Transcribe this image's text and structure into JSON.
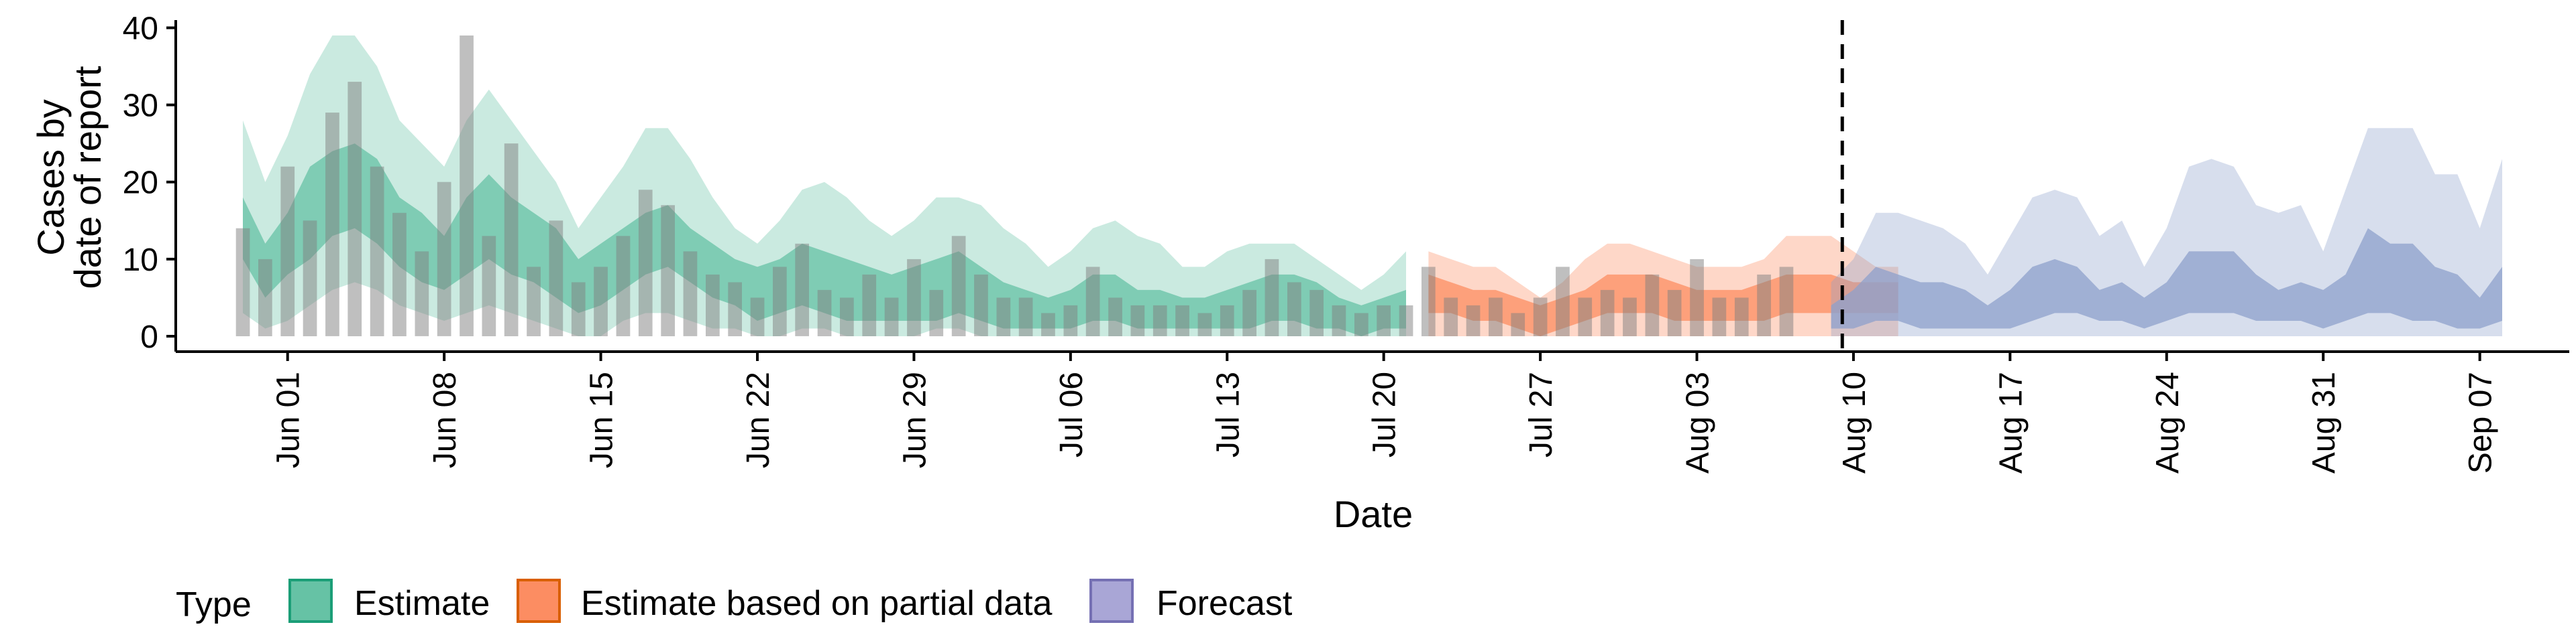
{
  "chart_data": {
    "type": "area",
    "xlabel": "Date",
    "ylabel_lines": [
      "Cases by",
      "date of report"
    ],
    "x_start": "2020-05-30",
    "ylim": [
      -2,
      41
    ],
    "xlim": [
      "2020-05-27",
      "2020-09-11"
    ],
    "y_ticks": [
      0,
      10,
      20,
      30,
      40
    ],
    "x_ticks": [
      {
        "date": "2020-06-01",
        "label": "Jun 01"
      },
      {
        "date": "2020-06-08",
        "label": "Jun 08"
      },
      {
        "date": "2020-06-15",
        "label": "Jun 15"
      },
      {
        "date": "2020-06-22",
        "label": "Jun 22"
      },
      {
        "date": "2020-06-29",
        "label": "Jun 29"
      },
      {
        "date": "2020-07-06",
        "label": "Jul 06"
      },
      {
        "date": "2020-07-13",
        "label": "Jul 13"
      },
      {
        "date": "2020-07-20",
        "label": "Jul 20"
      },
      {
        "date": "2020-07-27",
        "label": "Jul 27"
      },
      {
        "date": "2020-08-03",
        "label": "Aug 03"
      },
      {
        "date": "2020-08-10",
        "label": "Aug 10"
      },
      {
        "date": "2020-08-17",
        "label": "Aug 17"
      },
      {
        "date": "2020-08-24",
        "label": "Aug 24"
      },
      {
        "date": "2020-08-31",
        "label": "Aug 31"
      },
      {
        "date": "2020-09-07",
        "label": "Sep 07"
      }
    ],
    "vline_date": "2020-08-09",
    "observed_cases": [
      14,
      10,
      22,
      15,
      29,
      33,
      22,
      16,
      11,
      20,
      39,
      13,
      25,
      9,
      15,
      7,
      9,
      13,
      19,
      17,
      11,
      8,
      7,
      5,
      9,
      12,
      6,
      5,
      8,
      5,
      10,
      6,
      13,
      8,
      5,
      5,
      3,
      4,
      9,
      5,
      4,
      4,
      4,
      3,
      4,
      6,
      10,
      7,
      6,
      4,
      3,
      4,
      4,
      9,
      5,
      4,
      5,
      3,
      5,
      9,
      5,
      6,
      5,
      8,
      6,
      10,
      5,
      5,
      8,
      9
    ],
    "legend_title": "Type",
    "series": [
      {
        "name": "Estimate",
        "color": "#66c2a5",
        "start": "2020-05-30",
        "median": [
          14,
          9,
          12,
          16,
          20,
          22,
          19,
          15,
          13,
          10,
          14,
          17,
          15,
          12,
          10,
          8,
          9,
          11,
          13,
          14,
          12,
          9,
          7,
          6,
          7,
          8,
          7,
          6,
          6,
          5,
          6,
          6,
          7,
          6,
          5,
          4,
          3,
          4,
          5,
          5,
          4,
          4,
          3,
          3,
          3,
          4,
          5,
          5,
          4,
          3,
          3,
          3,
          3
        ],
        "inner": [
          [
            10,
            18
          ],
          [
            5,
            12
          ],
          [
            8,
            16
          ],
          [
            10,
            22
          ],
          [
            13,
            24
          ],
          [
            14,
            25
          ],
          [
            12,
            23
          ],
          [
            9,
            18
          ],
          [
            7,
            16
          ],
          [
            6,
            13
          ],
          [
            8,
            18
          ],
          [
            10,
            21
          ],
          [
            8,
            18
          ],
          [
            7,
            16
          ],
          [
            5,
            14
          ],
          [
            3,
            10
          ],
          [
            4,
            12
          ],
          [
            6,
            14
          ],
          [
            8,
            16
          ],
          [
            9,
            17
          ],
          [
            7,
            14
          ],
          [
            5,
            12
          ],
          [
            4,
            10
          ],
          [
            2,
            9
          ],
          [
            3,
            10
          ],
          [
            4,
            12
          ],
          [
            3,
            11
          ],
          [
            2,
            10
          ],
          [
            2,
            9
          ],
          [
            2,
            8
          ],
          [
            2,
            9
          ],
          [
            2,
            10
          ],
          [
            3,
            11
          ],
          [
            2,
            9
          ],
          [
            1,
            7
          ],
          [
            1,
            6
          ],
          [
            1,
            5
          ],
          [
            1,
            6
          ],
          [
            2,
            8
          ],
          [
            2,
            8
          ],
          [
            1,
            6
          ],
          [
            1,
            6
          ],
          [
            1,
            5
          ],
          [
            1,
            5
          ],
          [
            1,
            6
          ],
          [
            1,
            7
          ],
          [
            2,
            8
          ],
          [
            2,
            8
          ],
          [
            1,
            7
          ],
          [
            1,
            5
          ],
          [
            0,
            4
          ],
          [
            1,
            5
          ],
          [
            1,
            6
          ]
        ],
        "outer": [
          [
            3,
            28
          ],
          [
            1,
            20
          ],
          [
            2,
            26
          ],
          [
            4,
            34
          ],
          [
            6,
            39
          ],
          [
            7,
            39
          ],
          [
            6,
            35
          ],
          [
            4,
            28
          ],
          [
            3,
            25
          ],
          [
            2,
            22
          ],
          [
            3,
            28
          ],
          [
            4,
            32
          ],
          [
            3,
            28
          ],
          [
            2,
            24
          ],
          [
            1,
            20
          ],
          [
            0,
            14
          ],
          [
            0,
            18
          ],
          [
            2,
            22
          ],
          [
            3,
            27
          ],
          [
            3,
            27
          ],
          [
            2,
            23
          ],
          [
            1,
            18
          ],
          [
            1,
            14
          ],
          [
            0,
            12
          ],
          [
            0,
            15
          ],
          [
            1,
            19
          ],
          [
            1,
            20
          ],
          [
            0,
            18
          ],
          [
            0,
            15
          ],
          [
            0,
            13
          ],
          [
            0,
            15
          ],
          [
            1,
            18
          ],
          [
            1,
            18
          ],
          [
            0,
            17
          ],
          [
            0,
            14
          ],
          [
            0,
            12
          ],
          [
            0,
            9
          ],
          [
            0,
            11
          ],
          [
            0,
            14
          ],
          [
            0,
            15
          ],
          [
            0,
            13
          ],
          [
            0,
            12
          ],
          [
            0,
            9
          ],
          [
            0,
            9
          ],
          [
            0,
            11
          ],
          [
            0,
            12
          ],
          [
            0,
            12
          ],
          [
            0,
            12
          ],
          [
            0,
            10
          ],
          [
            0,
            8
          ],
          [
            0,
            6
          ],
          [
            0,
            8
          ],
          [
            0,
            11
          ]
        ]
      },
      {
        "name": "Estimate based on partial data",
        "color": "#fc8d62",
        "start": "2020-07-22",
        "median": [
          6,
          5,
          4,
          4,
          3,
          2,
          3,
          4,
          5,
          6,
          6,
          5,
          4,
          4,
          4,
          5,
          5,
          6,
          6,
          5,
          5,
          5
        ],
        "inner": [
          [
            3,
            8
          ],
          [
            3,
            7
          ],
          [
            2,
            6
          ],
          [
            2,
            6
          ],
          [
            1,
            5
          ],
          [
            0,
            4
          ],
          [
            1,
            5
          ],
          [
            2,
            6
          ],
          [
            3,
            8
          ],
          [
            3,
            8
          ],
          [
            3,
            8
          ],
          [
            2,
            7
          ],
          [
            2,
            6
          ],
          [
            2,
            6
          ],
          [
            2,
            6
          ],
          [
            2,
            7
          ],
          [
            3,
            8
          ],
          [
            3,
            8
          ],
          [
            3,
            8
          ],
          [
            3,
            7
          ],
          [
            3,
            7
          ],
          [
            3,
            7
          ]
        ],
        "outer": [
          [
            0,
            11
          ],
          [
            0,
            10
          ],
          [
            0,
            9
          ],
          [
            0,
            9
          ],
          [
            0,
            7
          ],
          [
            0,
            5
          ],
          [
            0,
            7
          ],
          [
            0,
            10
          ],
          [
            0,
            12
          ],
          [
            0,
            12
          ],
          [
            0,
            11
          ],
          [
            0,
            10
          ],
          [
            0,
            9
          ],
          [
            0,
            9
          ],
          [
            0,
            9
          ],
          [
            0,
            10
          ],
          [
            0,
            13
          ],
          [
            0,
            13
          ],
          [
            0,
            13
          ],
          [
            0,
            11
          ],
          [
            0,
            9
          ],
          [
            0,
            9
          ]
        ]
      },
      {
        "name": "Forecast",
        "color": "#8da0cb",
        "start": "2020-08-09",
        "median": [
          2,
          3,
          5,
          4,
          3,
          3,
          3,
          2,
          3,
          5,
          7,
          6,
          4,
          4,
          3,
          4,
          6,
          7,
          7,
          5,
          4,
          4,
          3,
          4,
          6,
          8,
          7,
          6,
          5,
          4,
          5
        ],
        "inner": [
          [
            1,
            4
          ],
          [
            1,
            6
          ],
          [
            2,
            9
          ],
          [
            2,
            8
          ],
          [
            1,
            7
          ],
          [
            1,
            7
          ],
          [
            1,
            6
          ],
          [
            1,
            4
          ],
          [
            1,
            6
          ],
          [
            2,
            9
          ],
          [
            3,
            10
          ],
          [
            3,
            9
          ],
          [
            2,
            6
          ],
          [
            2,
            7
          ],
          [
            1,
            5
          ],
          [
            2,
            7
          ],
          [
            3,
            11
          ],
          [
            3,
            11
          ],
          [
            3,
            11
          ],
          [
            2,
            8
          ],
          [
            2,
            6
          ],
          [
            2,
            7
          ],
          [
            1,
            6
          ],
          [
            2,
            8
          ],
          [
            3,
            14
          ],
          [
            3,
            12
          ],
          [
            2,
            12
          ],
          [
            2,
            9
          ],
          [
            1,
            8
          ],
          [
            1,
            5
          ],
          [
            2,
            9
          ]
        ],
        "outer": [
          [
            0,
            7
          ],
          [
            0,
            10
          ],
          [
            0,
            16
          ],
          [
            0,
            16
          ],
          [
            0,
            15
          ],
          [
            0,
            14
          ],
          [
            0,
            12
          ],
          [
            0,
            8
          ],
          [
            0,
            13
          ],
          [
            0,
            18
          ],
          [
            0,
            19
          ],
          [
            0,
            18
          ],
          [
            0,
            13
          ],
          [
            0,
            15
          ],
          [
            0,
            9
          ],
          [
            0,
            14
          ],
          [
            0,
            22
          ],
          [
            0,
            23
          ],
          [
            0,
            22
          ],
          [
            0,
            17
          ],
          [
            0,
            16
          ],
          [
            0,
            17
          ],
          [
            0,
            11
          ],
          [
            0,
            19
          ],
          [
            0,
            27
          ],
          [
            0,
            27
          ],
          [
            0,
            27
          ],
          [
            0,
            21
          ],
          [
            0,
            21
          ],
          [
            0,
            14
          ],
          [
            0,
            23
          ]
        ]
      }
    ]
  }
}
